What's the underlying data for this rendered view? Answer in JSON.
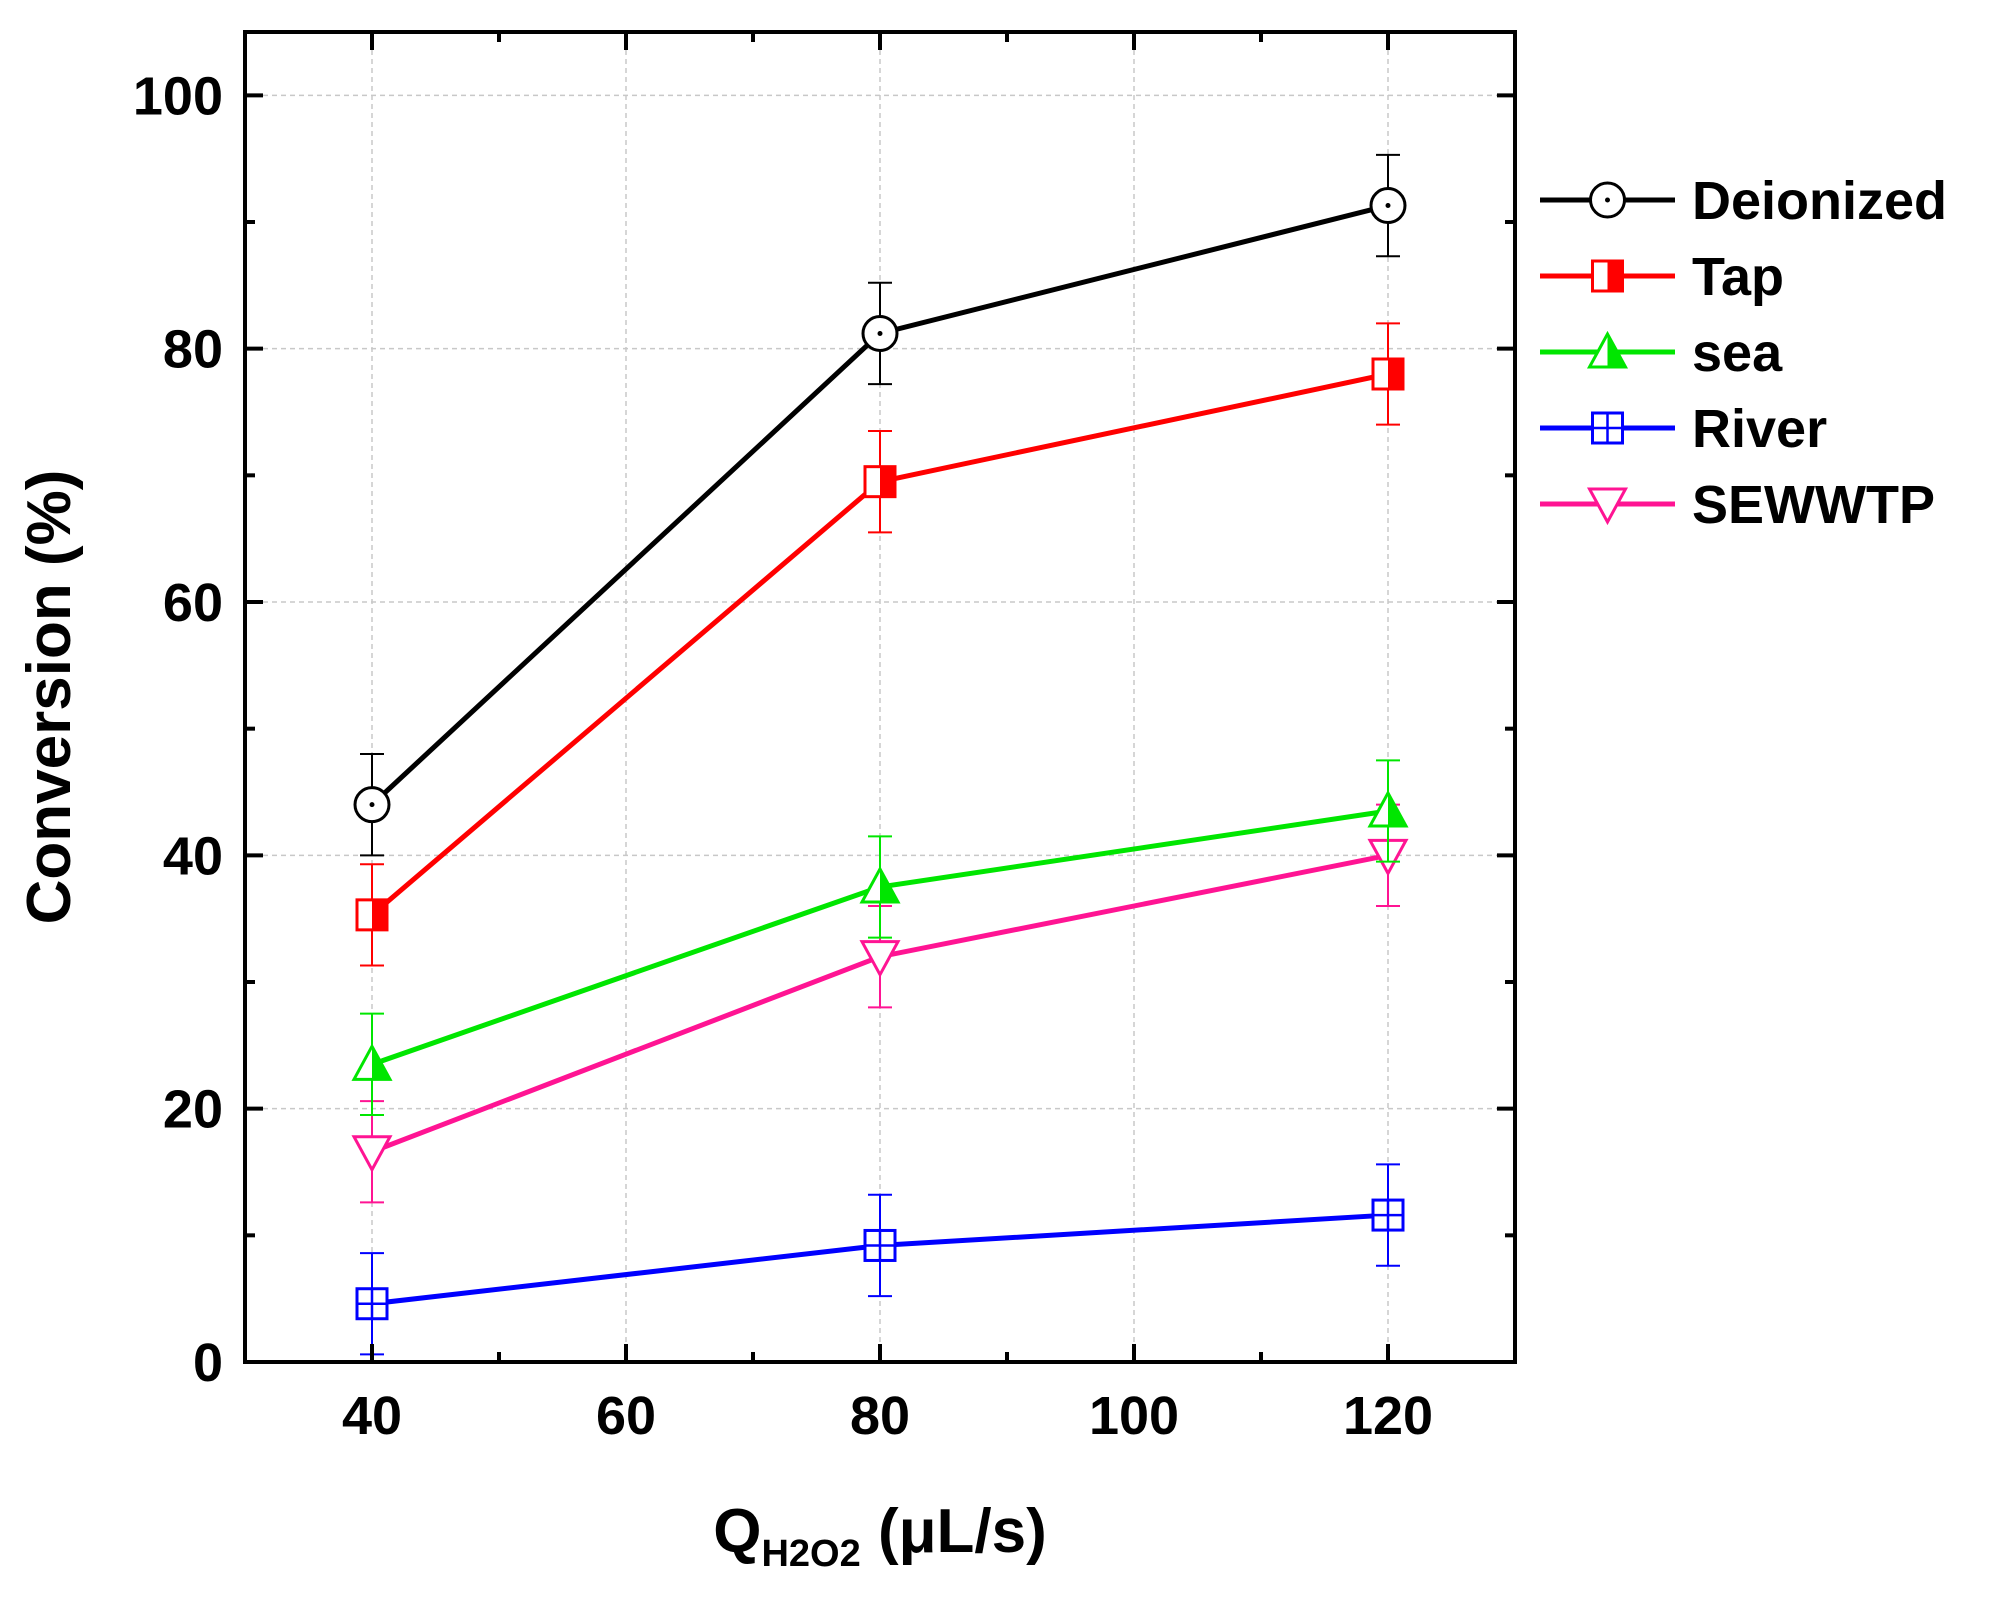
{
  "chart_data": {
    "type": "line",
    "title": "",
    "xlabel": {
      "main": "Q",
      "sub": "H2O2",
      "unit": " (μL/s)"
    },
    "ylabel": "Conversion (%)",
    "xlim": [
      30,
      130
    ],
    "ylim": [
      0,
      105
    ],
    "xticks": [
      40,
      60,
      80,
      100,
      120
    ],
    "yticks": [
      0,
      20,
      40,
      60,
      80,
      100
    ],
    "grid": true,
    "legend_position": "right",
    "x": [
      40,
      80,
      120
    ],
    "series": [
      {
        "name": "Deionized",
        "values": [
          44,
          81.2,
          91.3
        ],
        "errors": [
          4,
          4,
          4
        ],
        "color": "#000000",
        "marker": "circle-dot"
      },
      {
        "name": "Tap",
        "values": [
          35.3,
          69.5,
          78
        ],
        "errors": [
          4,
          4,
          4
        ],
        "color": "#ff0000",
        "marker": "square-half"
      },
      {
        "name": "sea",
        "values": [
          23.5,
          37.5,
          43.5
        ],
        "errors": [
          4,
          4,
          4
        ],
        "color": "#00e600",
        "marker": "triangle-up-half"
      },
      {
        "name": "River",
        "values": [
          4.6,
          9.2,
          11.6
        ],
        "errors": [
          4,
          4,
          4
        ],
        "color": "#0000ff",
        "marker": "square-cross"
      },
      {
        "name": "SEWWTP",
        "values": [
          16.6,
          32,
          40
        ],
        "errors": [
          4,
          4,
          4
        ],
        "color": "#ff1493",
        "marker": "triangle-down"
      }
    ]
  }
}
